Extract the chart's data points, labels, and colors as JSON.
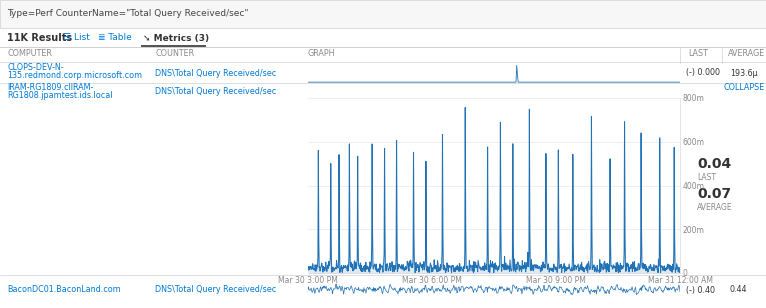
{
  "title_query": "Type=Perf CounterName=\"Total Query Received/sec\"",
  "results_text": "11K Results",
  "col_headers": [
    "COMPUTER",
    "COUNTER",
    "GRAPH",
    "LAST",
    "AVERAGE"
  ],
  "row1": {
    "computer_line1": "CLOPS-DEV-N-",
    "computer_line2": "135.redmond.corp.microsoft.com",
    "counter": "DNS\\Total Query Received/sec",
    "last": "0.000",
    "average": "193.6μ"
  },
  "row2": {
    "computer_line1": "IRAM-RG1809.clIRAM-",
    "computer_line2": "RG1808.jpamtest.ids.local",
    "counter": "DNS\\Total Query Received/sec",
    "last": "0.04",
    "average": "0.07",
    "y_labels": [
      "0",
      "200m",
      "400m",
      "600m",
      "800m"
    ],
    "x_labels": [
      "Mar 30 3:00 PM",
      "Mar 30 6:00 PM",
      "Mar 30 9:00 PM",
      "Mar 31 12:00 AM"
    ],
    "collapse_text": "COLLAPSE",
    "last_label": "LAST",
    "average_label": "AVERAGE"
  },
  "row3": {
    "computer": "BaconDC01.BaconLand.com",
    "counter": "DNS\\Total Query Received/sec",
    "last": "0.40",
    "average": "0.44"
  },
  "bg_color": "#ffffff",
  "header_bg": "#f9f9f9",
  "line_color": "#2171b5",
  "text_color": "#333333",
  "link_color": "#0078d4",
  "header_color": "#888888",
  "border_color": "#d0d0d0",
  "grid_color": "#e8e8e8",
  "tab_underline": "#555555"
}
